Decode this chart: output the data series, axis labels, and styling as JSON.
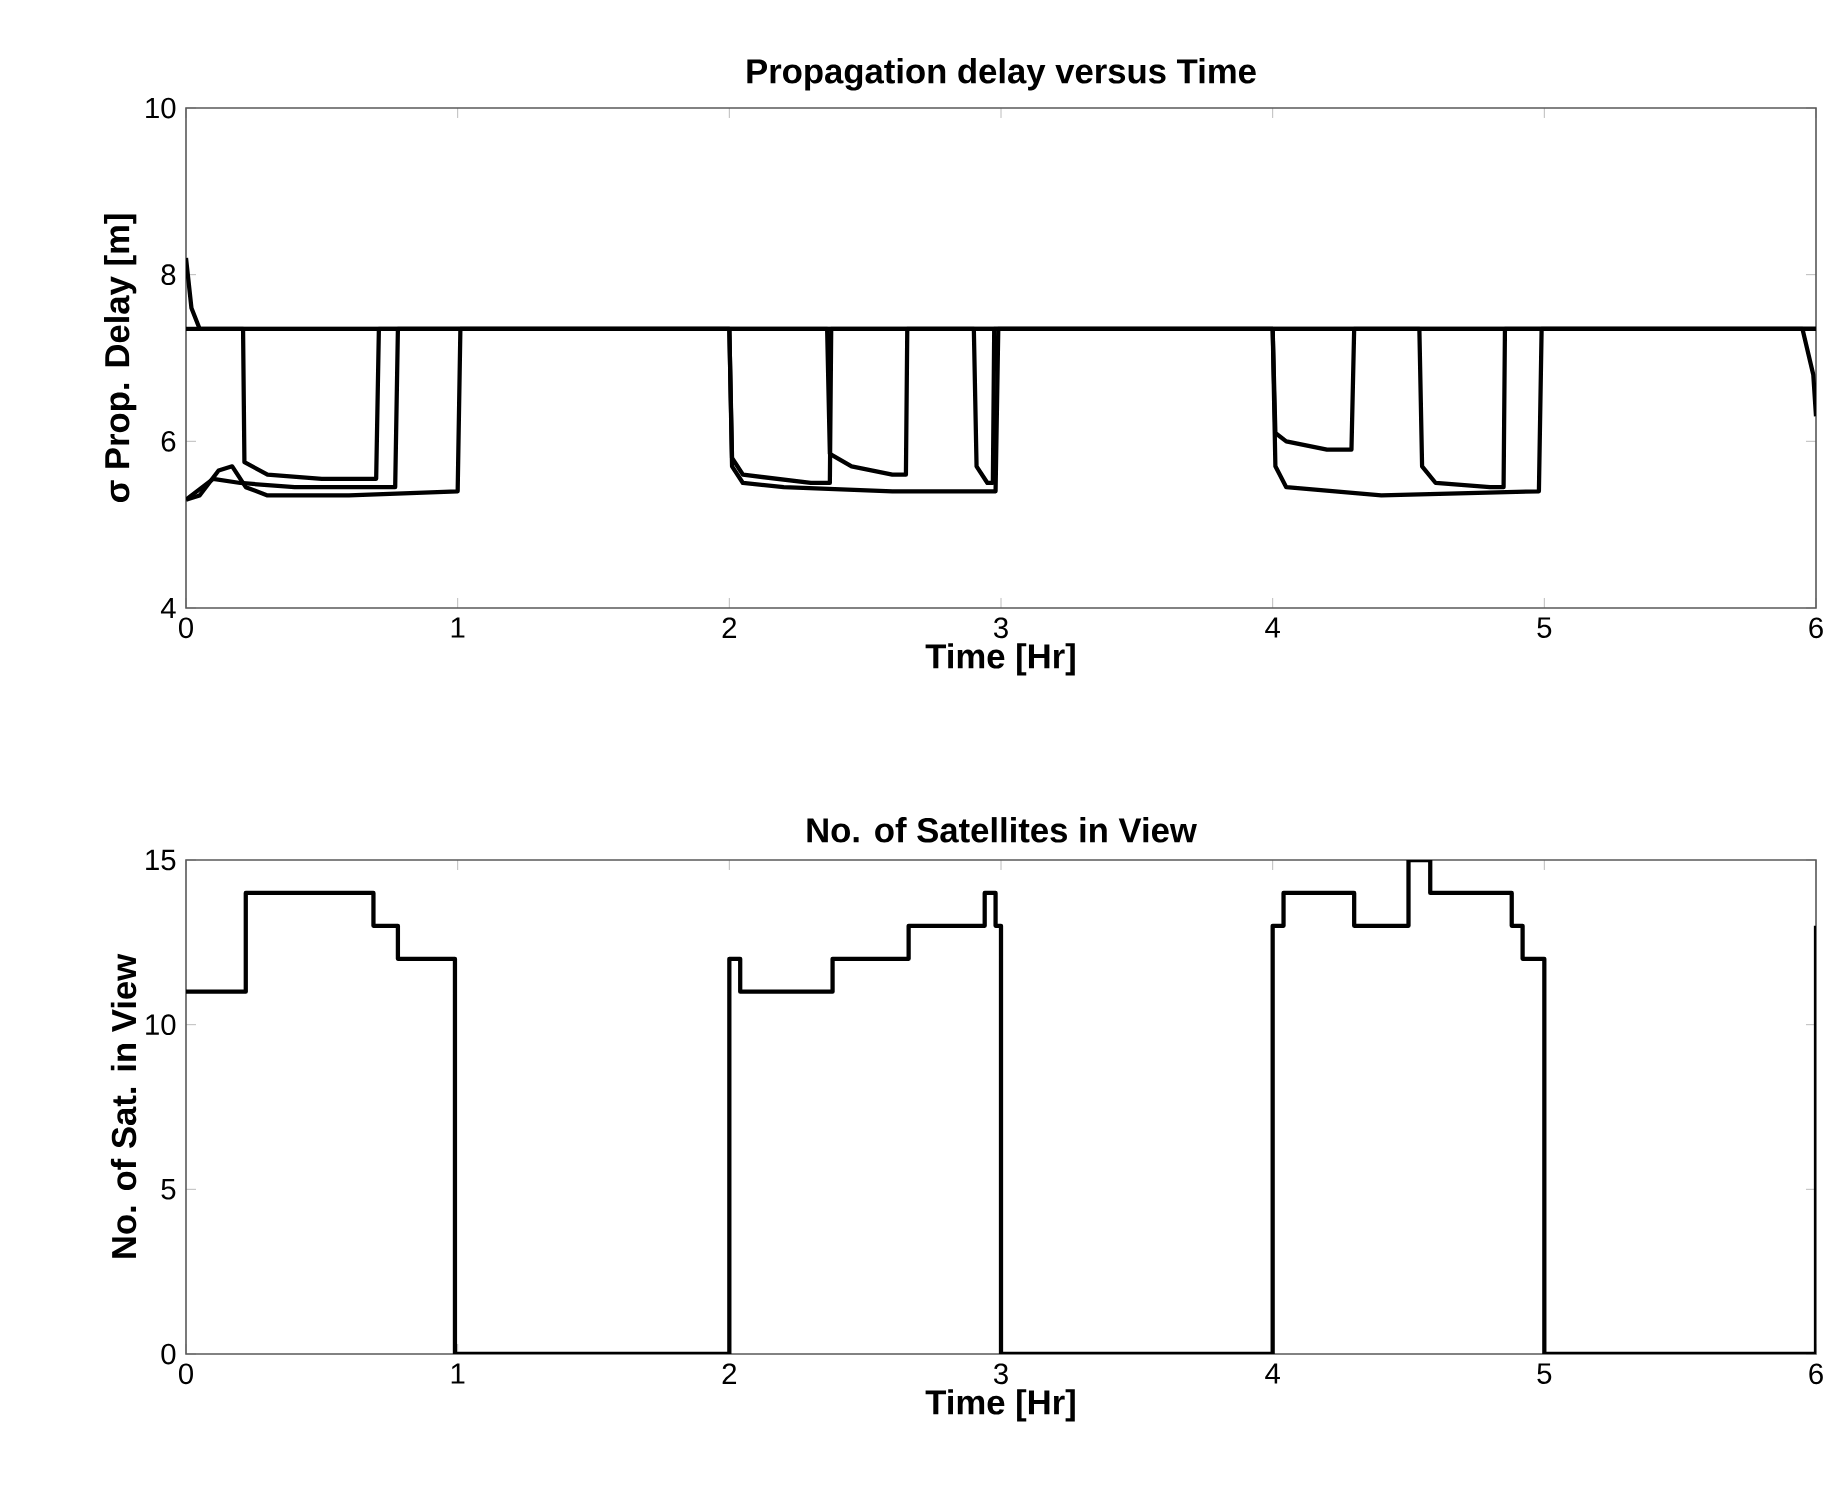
{
  "chart_data": [
    {
      "type": "line",
      "title": "Propagation delay versus Time",
      "xlabel": "Time [Hr]",
      "ylabel": "σ Prop. Delay [m]",
      "xlim": [
        0,
        6
      ],
      "ylim": [
        4,
        10
      ],
      "xticks": [
        0,
        1,
        2,
        3,
        4,
        5,
        6
      ],
      "yticks": [
        4,
        6,
        8,
        10
      ],
      "series": [
        {
          "color": "#000000",
          "x": [
            0,
            0.02,
            0.05,
            6
          ],
          "values": [
            8.2,
            7.6,
            7.35,
            7.35
          ]
        },
        {
          "color": "#000000",
          "x": [
            0,
            0.05,
            0.12,
            0.17,
            0.22,
            0.3,
            0.6,
            1.0,
            1.01,
            2.0,
            2.01,
            2.05,
            2.2,
            2.6,
            2.98,
            2.99,
            4.0,
            4.01,
            4.05,
            4.4,
            4.98,
            4.99,
            6.0
          ],
          "values": [
            5.3,
            5.35,
            5.65,
            5.7,
            5.45,
            5.35,
            5.35,
            5.4,
            7.35,
            7.35,
            5.7,
            5.5,
            5.45,
            5.4,
            5.4,
            7.35,
            7.35,
            5.7,
            5.45,
            5.35,
            5.4,
            7.35,
            7.35
          ]
        },
        {
          "color": "#000000",
          "x": [
            0,
            0.21,
            0.215,
            0.3,
            0.5,
            0.7,
            0.71,
            2.0,
            2.01,
            2.05,
            2.3,
            2.37,
            2.375,
            4.0,
            4.01,
            4.05,
            4.2,
            4.29,
            4.3,
            6.0
          ],
          "values": [
            7.35,
            7.35,
            5.75,
            5.6,
            5.55,
            5.55,
            7.35,
            7.35,
            5.8,
            5.6,
            5.5,
            5.5,
            7.35,
            7.35,
            6.1,
            6.0,
            5.9,
            5.9,
            7.35,
            7.35
          ]
        },
        {
          "color": "#000000",
          "x": [
            0,
            0.1,
            0.2,
            0.4,
            0.77,
            0.78,
            2.36,
            2.37,
            2.45,
            2.6,
            2.65,
            2.655,
            4.54,
            4.55,
            4.6,
            4.8,
            4.85,
            4.855,
            6.0
          ],
          "values": [
            5.3,
            5.55,
            5.5,
            5.45,
            5.45,
            7.35,
            7.35,
            5.85,
            5.7,
            5.6,
            5.6,
            7.35,
            7.35,
            5.7,
            5.5,
            5.45,
            5.45,
            7.35,
            7.35
          ]
        },
        {
          "color": "#000000",
          "x": [
            0,
            2.9,
            2.91,
            2.95,
            2.97,
            2.975,
            5.95,
            5.99,
            6.0
          ],
          "values": [
            7.35,
            7.35,
            5.7,
            5.5,
            5.5,
            7.35,
            7.35,
            6.8,
            6.3
          ]
        }
      ]
    },
    {
      "type": "step",
      "title": "No. of Satellites in View",
      "xlabel": "Time [Hr]",
      "ylabel": "No. of Sat. in View",
      "xlim": [
        0,
        6
      ],
      "ylim": [
        0,
        15
      ],
      "xticks": [
        0,
        1,
        2,
        3,
        4,
        5,
        6
      ],
      "yticks": [
        0,
        5,
        10,
        15
      ],
      "series": [
        {
          "color": "#000000",
          "x": [
            0,
            0.22,
            0.69,
            0.78,
            0.99,
            2.0,
            2.04,
            2.38,
            2.66,
            2.94,
            2.98,
            3.0,
            4.0,
            4.04,
            4.3,
            4.5,
            4.58,
            4.88,
            4.92,
            5.0,
            6.0
          ],
          "values": [
            11,
            14,
            13,
            12,
            0,
            12,
            11,
            12,
            13,
            14,
            13,
            0,
            13,
            14,
            13,
            15,
            14,
            13,
            12,
            0,
            13
          ]
        }
      ]
    }
  ]
}
